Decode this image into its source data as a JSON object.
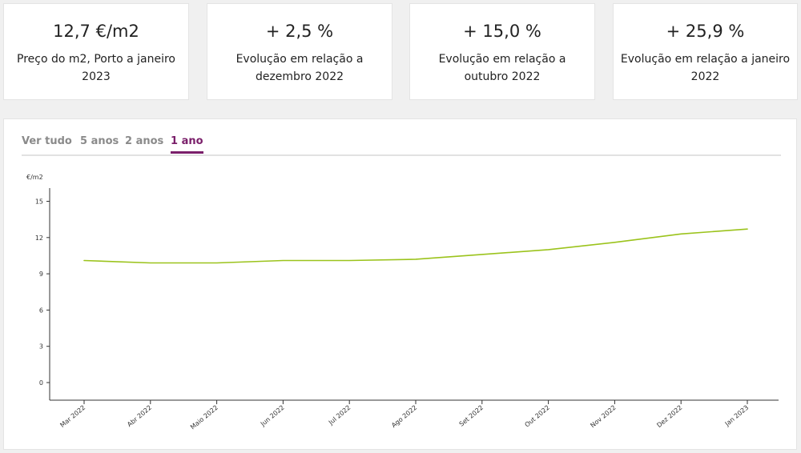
{
  "stats": [
    {
      "value": "12,7 €/m2",
      "desc": "Preço do m2, Porto a janeiro 2023"
    },
    {
      "value": "+ 2,5 %",
      "desc": "Evolução em relação a dezembro 2022"
    },
    {
      "value": "+ 15,0 %",
      "desc": "Evolução em relação a outubro 2022"
    },
    {
      "value": "+ 25,9 %",
      "desc": "Evolução em relação a janeiro 2022"
    }
  ],
  "tabs": [
    {
      "label": "Ver tudo",
      "active": false
    },
    {
      "label": "5 anos",
      "active": false
    },
    {
      "label": "2 anos",
      "active": false
    },
    {
      "label": "1 ano",
      "active": true
    }
  ],
  "chart_data": {
    "type": "line",
    "title": "",
    "ylabel": "€/m2",
    "xlabel": "",
    "ylim": [
      0,
      16.5
    ],
    "yticks": [
      0,
      3,
      6,
      9,
      12,
      15
    ],
    "ytick_labels": [
      "0",
      "3",
      "6",
      "9",
      "12",
      "15"
    ],
    "grid": false,
    "x": [
      "Mar 2022",
      "Abr 2022",
      "Maio 2022",
      "Jun 2022",
      "Jul 2022",
      "Ago 2022",
      "Set 2022",
      "Out 2022",
      "Nov 2022",
      "Dez 2022",
      "Jan 2023"
    ],
    "series": [
      {
        "color": "#9bc31c",
        "values": [
          10.1,
          9.9,
          9.9,
          10.1,
          10.1,
          10.2,
          10.6,
          11.0,
          11.6,
          12.3,
          12.7
        ]
      }
    ]
  },
  "colors": {
    "accent": "#7a1f6a",
    "line": "#9bc31c"
  }
}
